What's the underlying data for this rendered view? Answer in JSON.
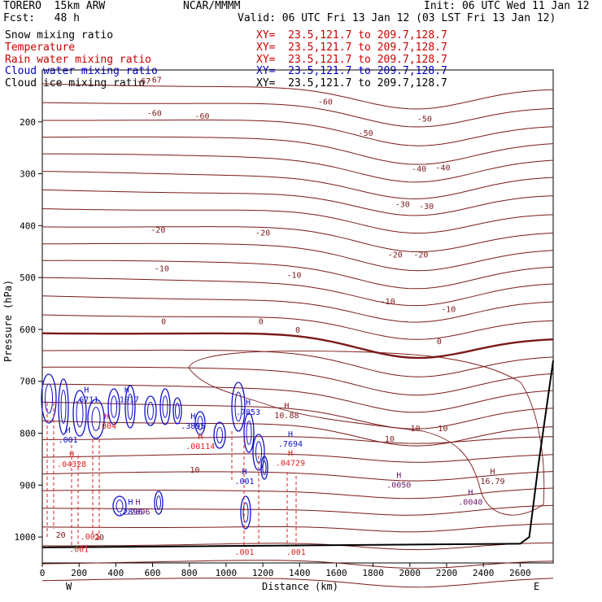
{
  "header": {
    "model": "TORERO  15km ARW",
    "center": "NCAR/MMMM",
    "init": "Init: 06 UTC Wed 11 Jan 12",
    "fcst": "Fcst:   48 h",
    "valid": "Valid: 06 UTC Fri 13 Jan 12 (03 LST Fri 13 Jan 12)"
  },
  "legend": [
    {
      "label": "Snow mixing ratio",
      "xy": "XY=  23.5,121.7 to 209.7,128.7",
      "color": "#000000",
      "xycolor": "#cc0000"
    },
    {
      "label": "Temperature",
      "xy": "XY=  23.5,121.7 to 209.7,128.7",
      "color": "#cc0000",
      "xycolor": "#cc0000"
    },
    {
      "label": "Rain water mixing ratio",
      "xy": "XY=  23.5,121.7 to 209.7,128.7",
      "color": "#cc0000",
      "xycolor": "#cc0000"
    },
    {
      "label": "Cloud water mixing ratio",
      "xy": "XY=  23.5,121.7 to 209.7,128.7",
      "color": "#0000cc",
      "xycolor": "#0000cc"
    },
    {
      "label": "Cloud ice mixing ratio",
      "xy": "XY=  23.5,121.7 to 209.7,128.7",
      "color": "#000000",
      "xycolor": "#000000"
    }
  ],
  "colors": {
    "temperature": "#7a1a1a",
    "rain": "#dd2222",
    "cloud": "#1010cc",
    "terrain": "#000000",
    "hl": "#6a1a6a"
  },
  "chart_data": {
    "type": "line",
    "title": "",
    "xlabel": "Distance (km)",
    "ylabel": "Pressure (hPa)",
    "xlim": [
      0,
      2780
    ],
    "ylim": [
      1050,
      100
    ],
    "xticks": [
      0,
      200,
      400,
      600,
      800,
      1000,
      1200,
      1400,
      1600,
      1800,
      2000,
      2200,
      2400,
      2600
    ],
    "yticks": [
      200,
      300,
      400,
      500,
      600,
      700,
      800,
      900,
      1000
    ],
    "endpoints": {
      "left": "W",
      "right": "E"
    },
    "temperature_labels": [
      {
        "text": "-67",
        "x": 550,
        "p": 120
      },
      {
        "text": "-67",
        "x": 610,
        "p": 118
      },
      {
        "text": "-60",
        "x": 610,
        "p": 182
      },
      {
        "text": "-60",
        "x": 870,
        "p": 188
      },
      {
        "text": "-60",
        "x": 1540,
        "p": 160
      },
      {
        "text": "-50",
        "x": 1760,
        "p": 221
      },
      {
        "text": "-50",
        "x": 2080,
        "p": 193
      },
      {
        "text": "-40",
        "x": 2050,
        "p": 290
      },
      {
        "text": "-40",
        "x": 2180,
        "p": 287
      },
      {
        "text": "-30",
        "x": 1960,
        "p": 358
      },
      {
        "text": "-30",
        "x": 2090,
        "p": 362
      },
      {
        "text": "-20",
        "x": 630,
        "p": 407
      },
      {
        "text": "-20",
        "x": 1200,
        "p": 413
      },
      {
        "text": "-20",
        "x": 1920,
        "p": 455
      },
      {
        "text": "-20",
        "x": 2060,
        "p": 455
      },
      {
        "text": "-10",
        "x": 650,
        "p": 482
      },
      {
        "text": "-10",
        "x": 1370,
        "p": 494
      },
      {
        "text": "-10",
        "x": 1880,
        "p": 545
      },
      {
        "text": "-10",
        "x": 2210,
        "p": 560
      },
      {
        "text": "0",
        "x": 660,
        "p": 584
      },
      {
        "text": "0",
        "x": 1190,
        "p": 584
      },
      {
        "text": "0",
        "x": 1390,
        "p": 600
      },
      {
        "text": "0",
        "x": 2160,
        "p": 622
      },
      {
        "text": "10",
        "x": 830,
        "p": 870
      },
      {
        "text": "10",
        "x": 1890,
        "p": 810
      },
      {
        "text": "10",
        "x": 2030,
        "p": 790
      },
      {
        "text": "10",
        "x": 2180,
        "p": 790
      },
      {
        "text": "20",
        "x": 100,
        "p": 995
      },
      {
        "text": "20",
        "x": 310,
        "p": 1000
      }
    ],
    "extrema_labels": [
      {
        "mark": "H",
        "value": ".6711",
        "x": 240,
        "p": 736,
        "series": "cloud"
      },
      {
        "mark": "H",
        "value": ".1917",
        "x": 460,
        "p": 736,
        "series": "cloud"
      },
      {
        "mark": "H",
        "value": ".001",
        "x": 140,
        "p": 813,
        "series": "cloud"
      },
      {
        "mark": "H",
        "value": ".004",
        "x": 350,
        "p": 787,
        "series": "rain"
      },
      {
        "mark": "H",
        "value": ".04328",
        "x": 160,
        "p": 860,
        "series": "rain"
      },
      {
        "mark": "H",
        "value": ".3895",
        "x": 820,
        "p": 787,
        "series": "cloud"
      },
      {
        "mark": "H",
        "value": ".00114",
        "x": 860,
        "p": 826,
        "series": "rain"
      },
      {
        "mark": "H",
        "value": ".7853",
        "x": 1120,
        "p": 760,
        "series": "cloud"
      },
      {
        "mark": "H",
        "value": "10.88",
        "x": 1330,
        "p": 766,
        "series": "temperature"
      },
      {
        "mark": "H",
        "value": ".7694",
        "x": 1350,
        "p": 821,
        "series": "cloud"
      },
      {
        "mark": "H",
        "value": ".04729",
        "x": 1350,
        "p": 858,
        "series": "rain"
      },
      {
        "mark": "H",
        "value": ".001",
        "x": 1100,
        "p": 893,
        "series": "cloud"
      },
      {
        "mark": "H",
        "value": ".2896",
        "x": 480,
        "p": 952,
        "series": "cloud"
      },
      {
        "mark": "H",
        "value": ".2896",
        "x": 520,
        "p": 952,
        "series": "hl"
      },
      {
        "mark": "H",
        "value": ".0050",
        "x": 1940,
        "p": 900,
        "series": "hl"
      },
      {
        "mark": "H",
        "value": ".0040",
        "x": 2330,
        "p": 933,
        "series": "hl"
      },
      {
        "mark": "H",
        "value": "16.79",
        "x": 2450,
        "p": 893,
        "series": "temperature"
      },
      {
        "mark": "",
        "value": ".001",
        "x": 260,
        "p": 1000,
        "series": "rain"
      },
      {
        "mark": "",
        "value": ".001",
        "x": 200,
        "p": 1024,
        "series": "rain"
      },
      {
        "mark": "",
        "value": ".001",
        "x": 1100,
        "p": 1030,
        "series": "rain"
      },
      {
        "mark": "",
        "value": ".001",
        "x": 1380,
        "p": 1030,
        "series": "rain"
      }
    ],
    "terrain": {
      "x": [
        0,
        2600,
        2650,
        2700,
        2780
      ],
      "p": [
        1020,
        1013,
        1000,
        860,
        660
      ]
    }
  }
}
